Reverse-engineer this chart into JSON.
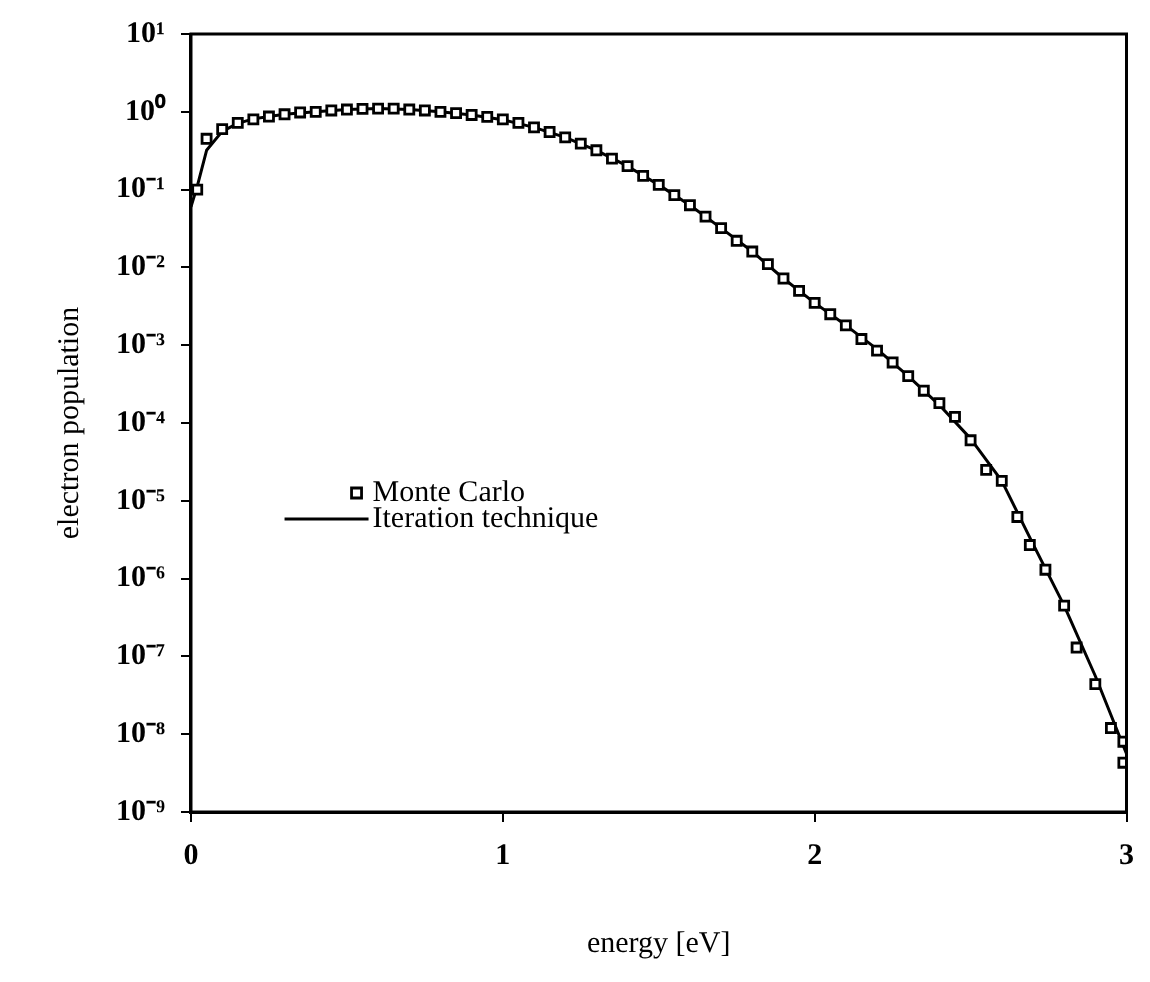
{
  "chart_data": {
    "type": "scatter",
    "xlabel": "energy [eV]",
    "ylabel": "electron population",
    "log": "y",
    "xlim": [
      0,
      3
    ],
    "xticks": [
      0,
      1,
      2,
      3
    ],
    "ylim": [
      1e-09,
      10
    ],
    "yticks": [
      {
        "value": 10,
        "label": "10¹"
      },
      {
        "value": 1,
        "label": "10⁰"
      },
      {
        "value": 0.1,
        "label": "10⁻¹"
      },
      {
        "value": 0.01,
        "label": "10⁻²"
      },
      {
        "value": 0.001,
        "label": "10⁻³"
      },
      {
        "value": 0.0001,
        "label": "10⁻⁴"
      },
      {
        "value": 1e-05,
        "label": "10⁻⁵"
      },
      {
        "value": 1e-06,
        "label": "10⁻⁶"
      },
      {
        "value": 1e-07,
        "label": "10⁻⁷"
      },
      {
        "value": 1e-08,
        "label": "10⁻⁸"
      },
      {
        "value": 1e-09,
        "label": "10⁻⁹"
      }
    ],
    "grid": false,
    "legend": "left",
    "series": [
      {
        "name": "Monte Carlo",
        "type": "scatter",
        "marker": "square",
        "color": "#000000",
        "x": [
          0.02,
          0.05,
          0.1,
          0.15,
          0.2,
          0.25,
          0.3,
          0.35,
          0.4,
          0.45,
          0.5,
          0.55,
          0.6,
          0.65,
          0.7,
          0.75,
          0.8,
          0.85,
          0.9,
          0.95,
          1.0,
          1.05,
          1.1,
          1.15,
          1.2,
          1.25,
          1.3,
          1.35,
          1.4,
          1.45,
          1.5,
          1.55,
          1.6,
          1.65,
          1.7,
          1.75,
          1.8,
          1.85,
          1.9,
          1.95,
          2.0,
          2.05,
          2.1,
          2.15,
          2.2,
          2.25,
          2.3,
          2.35,
          2.4,
          2.45,
          2.5,
          2.55,
          2.6,
          2.65,
          2.69,
          2.74,
          2.8,
          2.84,
          2.9,
          2.95,
          2.99,
          2.99
        ],
        "values": [
          0.1,
          0.45,
          0.6,
          0.72,
          0.8,
          0.87,
          0.93,
          0.98,
          1.0,
          1.04,
          1.07,
          1.09,
          1.1,
          1.1,
          1.07,
          1.04,
          1.0,
          0.96,
          0.91,
          0.86,
          0.8,
          0.72,
          0.63,
          0.55,
          0.47,
          0.39,
          0.32,
          0.25,
          0.2,
          0.15,
          0.115,
          0.085,
          0.063,
          0.045,
          0.032,
          0.022,
          0.016,
          0.011,
          0.0072,
          0.005,
          0.0035,
          0.0025,
          0.0018,
          0.0012,
          0.00085,
          0.0006,
          0.0004,
          0.00026,
          0.00018,
          0.00012,
          6e-05,
          2.5e-05,
          1.8e-05,
          6.2e-06,
          2.7e-06,
          1.3e-06,
          4.5e-07,
          1.3e-07,
          4.4e-08,
          1.2e-08,
          8e-09,
          4.3e-09
        ]
      },
      {
        "name": "Iteration technique",
        "type": "line",
        "marker": "none",
        "line_style": "solid",
        "color": "#000000",
        "x": [
          0,
          0.02,
          0.05,
          0.1,
          0.15,
          0.2,
          0.3,
          0.4,
          0.5,
          0.6,
          0.7,
          0.8,
          0.9,
          1.0,
          1.1,
          1.2,
          1.3,
          1.4,
          1.5,
          1.6,
          1.7,
          1.8,
          1.9,
          2.0,
          2.1,
          2.2,
          2.3,
          2.4,
          2.5,
          2.6,
          2.7,
          2.8,
          2.9,
          3.0
        ],
        "values": [
          0.06,
          0.11,
          0.32,
          0.56,
          0.71,
          0.81,
          0.93,
          1.0,
          1.07,
          1.1,
          1.07,
          1.0,
          0.91,
          0.79,
          0.63,
          0.47,
          0.32,
          0.2,
          0.115,
          0.063,
          0.032,
          0.016,
          0.0072,
          0.0035,
          0.0018,
          0.00089,
          0.0004,
          0.00017,
          6.3e-05,
          1.8e-05,
          2.8e-06,
          4.5e-07,
          5.6e-08,
          5.6e-09
        ]
      }
    ]
  }
}
